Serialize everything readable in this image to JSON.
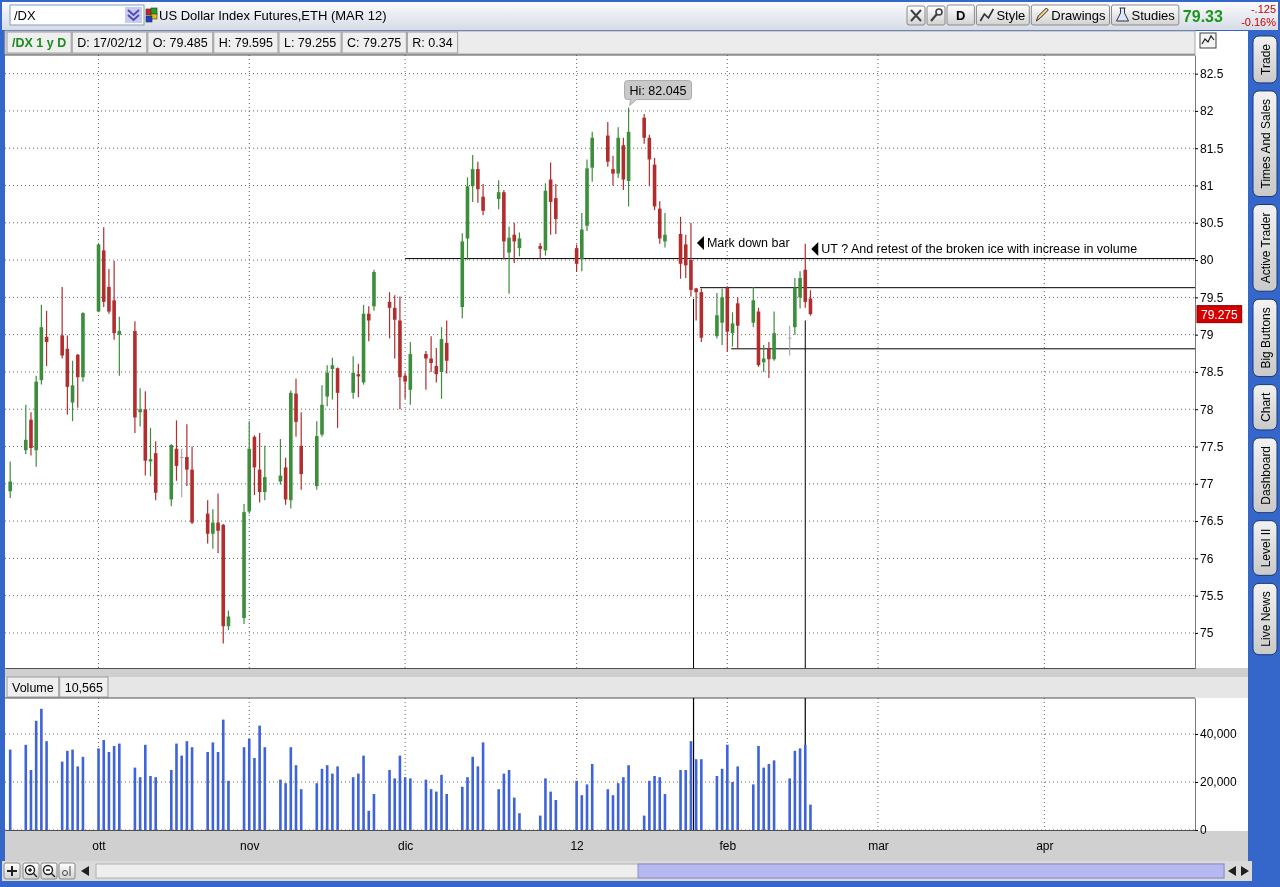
{
  "chart_data": [
    {
      "type": "candlestick",
      "title": "US Dollar Index Futures,ETH (MAR 12)",
      "subtitle": "/DX 1 y D",
      "x": [
        "2011-09-16",
        "2011-09-19",
        "2011-09-20",
        "2011-09-21",
        "2011-09-22",
        "2011-09-23",
        "2011-09-26",
        "2011-09-27",
        "2011-09-28",
        "2011-09-29",
        "2011-09-30",
        "2011-10-03",
        "2011-10-04",
        "2011-10-05",
        "2011-10-06",
        "2011-10-07",
        "2011-10-10",
        "2011-10-11",
        "2011-10-12",
        "2011-10-13",
        "2011-10-14",
        "2011-10-17",
        "2011-10-18",
        "2011-10-19",
        "2011-10-20",
        "2011-10-21",
        "2011-10-24",
        "2011-10-25",
        "2011-10-26",
        "2011-10-27",
        "2011-10-28",
        "2011-10-31",
        "2011-11-01",
        "2011-11-02",
        "2011-11-03",
        "2011-11-04",
        "2011-11-07",
        "2011-11-08",
        "2011-11-09",
        "2011-11-10",
        "2011-11-11",
        "2011-11-14",
        "2011-11-15",
        "2011-11-16",
        "2011-11-17",
        "2011-11-18",
        "2011-11-21",
        "2011-11-22",
        "2011-11-23",
        "2011-11-24",
        "2011-11-25",
        "2011-11-28",
        "2011-11-29",
        "2011-11-30",
        "2011-12-01",
        "2011-12-02",
        "2011-12-05",
        "2011-12-06",
        "2011-12-07",
        "2011-12-08",
        "2011-12-09",
        "2011-12-12",
        "2011-12-13",
        "2011-12-14",
        "2011-12-15",
        "2011-12-16",
        "2011-12-19",
        "2011-12-20",
        "2011-12-21",
        "2011-12-22",
        "2011-12-23",
        "2011-12-27",
        "2011-12-28",
        "2011-12-29",
        "2011-12-30",
        "2012-01-03",
        "2012-01-04",
        "2012-01-05",
        "2012-01-06",
        "2012-01-09",
        "2012-01-10",
        "2012-01-11",
        "2012-01-12",
        "2012-01-13",
        "2012-01-16",
        "2012-01-17",
        "2012-01-18",
        "2012-01-19",
        "2012-01-20",
        "2012-01-23",
        "2012-01-24",
        "2012-01-25",
        "2012-01-26",
        "2012-01-27",
        "2012-01-30",
        "2012-01-31",
        "2012-02-01",
        "2012-02-02",
        "2012-02-03",
        "2012-02-06",
        "2012-02-07",
        "2012-02-08",
        "2012-02-09",
        "2012-02-10",
        "2012-02-13",
        "2012-02-14",
        "2012-02-15",
        "2012-02-16",
        "2012-02-17"
      ],
      "ohlc": [
        [
          76.9,
          77.3,
          76.81,
          77.03
        ],
        [
          77.45,
          78.06,
          77.4,
          77.59
        ],
        [
          77.86,
          77.96,
          77.38,
          77.48
        ],
        [
          77.45,
          78.45,
          77.23,
          78.37
        ],
        [
          78.39,
          79.4,
          78.33,
          79.1
        ],
        [
          78.97,
          79.32,
          78.58,
          78.9
        ],
        [
          78.99,
          79.64,
          78.68,
          78.72
        ],
        [
          78.81,
          78.99,
          77.93,
          78.3
        ],
        [
          78.09,
          78.65,
          77.84,
          78.32
        ],
        [
          78.73,
          78.74,
          78.02,
          78.43
        ],
        [
          78.43,
          79.3,
          78.37,
          79.29
        ],
        [
          79.31,
          80.22,
          79.3,
          80.21
        ],
        [
          80.13,
          80.44,
          79.37,
          79.44
        ],
        [
          79.64,
          79.88,
          79.28,
          79.31
        ],
        [
          79.46,
          79.99,
          78.93,
          79.02
        ],
        [
          79.0,
          79.24,
          78.45,
          79.05
        ],
        [
          79.05,
          79.18,
          77.68,
          77.89
        ],
        [
          77.96,
          78.28,
          77.77,
          78.0
        ],
        [
          78.0,
          78.24,
          77.11,
          77.31
        ],
        [
          77.3,
          77.75,
          77.1,
          77.33
        ],
        [
          77.41,
          77.57,
          76.78,
          76.88
        ],
        [
          76.79,
          77.53,
          76.7,
          77.52
        ],
        [
          77.47,
          77.85,
          77.04,
          77.24
        ],
        [
          77.36,
          77.47,
          76.82,
          77.36
        ],
        [
          77.36,
          77.8,
          76.97,
          77.19
        ],
        [
          77.19,
          77.5,
          76.46,
          76.48
        ],
        [
          76.6,
          76.78,
          76.2,
          76.33
        ],
        [
          76.33,
          76.66,
          76.13,
          76.48
        ],
        [
          76.48,
          76.87,
          76.07,
          76.37
        ],
        [
          76.45,
          76.46,
          74.86,
          75.09
        ],
        [
          75.09,
          75.3,
          75.04,
          75.22
        ],
        [
          75.2,
          76.73,
          75.12,
          76.62
        ],
        [
          76.63,
          77.84,
          76.6,
          77.47
        ],
        [
          77.63,
          77.65,
          76.85,
          77.22
        ],
        [
          77.19,
          77.68,
          76.75,
          76.89
        ],
        [
          76.89,
          77.51,
          76.78,
          77.09
        ],
        [
          77.03,
          77.6,
          76.99,
          77.11
        ],
        [
          77.22,
          77.35,
          76.72,
          76.79
        ],
        [
          76.78,
          78.25,
          76.67,
          78.22
        ],
        [
          78.21,
          78.41,
          77.63,
          77.83
        ],
        [
          77.51,
          77.96,
          76.92,
          77.13
        ],
        [
          76.97,
          77.84,
          76.92,
          77.64
        ],
        [
          77.66,
          78.32,
          77.63,
          78.06
        ],
        [
          78.17,
          78.59,
          78.04,
          78.49
        ],
        [
          78.54,
          78.69,
          78.13,
          78.59
        ],
        [
          78.55,
          78.56,
          77.75,
          78.22
        ],
        [
          78.22,
          78.71,
          78.14,
          78.49
        ],
        [
          78.47,
          78.61,
          78.16,
          78.44
        ],
        [
          78.36,
          79.4,
          78.33,
          79.28
        ],
        [
          79.28,
          79.38,
          78.91,
          79.19
        ],
        [
          79.38,
          79.87,
          79.32,
          79.84
        ],
        [
          79.44,
          79.57,
          78.95,
          79.36
        ],
        [
          79.36,
          79.53,
          78.68,
          79.2
        ],
        [
          79.19,
          79.51,
          78.0,
          78.43
        ],
        [
          78.45,
          78.49,
          78.14,
          78.37
        ],
        [
          78.26,
          78.9,
          78.06,
          78.74
        ],
        [
          78.74,
          78.78,
          78.26,
          78.68
        ],
        [
          78.68,
          78.98,
          78.5,
          78.62
        ],
        [
          78.58,
          78.82,
          78.36,
          78.47
        ],
        [
          78.5,
          79.1,
          78.14,
          78.94
        ],
        [
          78.89,
          79.19,
          78.48,
          78.65
        ],
        [
          79.37,
          80.36,
          79.22,
          80.25
        ],
        [
          80.29,
          81.11,
          80.0,
          80.99
        ],
        [
          80.99,
          81.41,
          80.78,
          81.22
        ],
        [
          81.22,
          81.32,
          80.77,
          80.95
        ],
        [
          80.85,
          81.02,
          80.6,
          80.66
        ],
        [
          80.82,
          81.07,
          80.68,
          80.91
        ],
        [
          80.91,
          80.94,
          80.01,
          80.25
        ],
        [
          80.1,
          80.45,
          79.55,
          80.3
        ],
        [
          80.34,
          80.5,
          79.96,
          80.25
        ],
        [
          80.16,
          80.37,
          80.05,
          80.29
        ],
        [
          80.19,
          80.23,
          80.01,
          80.15
        ],
        [
          80.13,
          81.03,
          80.06,
          80.93
        ],
        [
          81.08,
          81.31,
          80.34,
          80.78
        ],
        [
          80.83,
          81.02,
          80.35,
          80.55
        ],
        [
          80.16,
          80.21,
          79.84,
          79.95
        ],
        [
          80.01,
          80.63,
          79.85,
          80.41
        ],
        [
          80.46,
          81.35,
          80.39,
          81.23
        ],
        [
          81.24,
          81.72,
          81.05,
          81.64
        ],
        [
          81.67,
          81.85,
          81.25,
          81.32
        ],
        [
          81.22,
          81.4,
          81.0,
          81.16
        ],
        [
          81.16,
          81.78,
          81.1,
          81.64
        ],
        [
          81.54,
          81.64,
          80.94,
          81.08
        ],
        [
          81.06,
          82.045,
          80.72,
          81.72
        ],
        [
          81.91,
          81.96,
          81.56,
          81.64
        ],
        [
          81.64,
          81.68,
          80.99,
          81.35
        ],
        [
          81.28,
          81.37,
          80.67,
          80.72
        ],
        [
          80.69,
          80.79,
          80.22,
          80.29
        ],
        [
          80.25,
          80.63,
          80.17,
          80.34
        ],
        [
          80.35,
          80.58,
          79.75,
          79.95
        ],
        [
          80.21,
          80.34,
          79.76,
          79.93
        ],
        [
          80.0,
          80.5,
          79.51,
          79.6
        ],
        [
          79.62,
          79.63,
          79.19,
          79.57
        ],
        [
          79.57,
          79.62,
          78.9,
          78.96
        ],
        [
          78.98,
          79.56,
          78.95,
          79.26
        ],
        [
          79.16,
          79.62,
          78.86,
          79.5
        ],
        [
          79.63,
          79.65,
          78.77,
          79.04
        ],
        [
          79.02,
          79.3,
          78.84,
          79.15
        ],
        [
          79.42,
          79.5,
          78.81,
          79.12
        ],
        [
          79.16,
          79.64,
          79.1,
          79.46
        ],
        [
          79.31,
          79.36,
          78.57,
          78.59
        ],
        [
          78.63,
          78.86,
          78.5,
          78.68
        ],
        [
          78.81,
          78.9,
          78.42,
          78.67
        ],
        [
          78.67,
          79.31,
          78.65,
          79.02
        ],
        [
          78.96,
          79.12,
          78.72,
          78.96
        ],
        [
          79.1,
          79.76,
          79.0,
          79.63
        ],
        [
          79.5,
          79.85,
          79.35,
          79.76
        ],
        [
          79.87,
          80.22,
          79.36,
          79.44
        ],
        [
          79.485,
          79.595,
          79.255,
          79.275
        ]
      ],
      "colors": [
        "#3c8d3c",
        "#3c8d3c",
        "#b22d2d",
        "#3c8d3c",
        "#3c8d3c",
        "#b22d2d",
        "#b22d2d",
        "#b22d2d",
        "#3c8d3c",
        "#b22d2d",
        "#3c8d3c",
        "#3c8d3c",
        "#b22d2d",
        "#b22d2d",
        "#b22d2d",
        "#3c8d3c",
        "#b22d2d",
        "#3c8d3c",
        "#b22d2d",
        "#3c8d3c",
        "#b22d2d",
        "#3c8d3c",
        "#b22d2d",
        "#a9a9a9",
        "#b22d2d",
        "#b22d2d",
        "#b22d2d",
        "#3c8d3c",
        "#b22d2d",
        "#b22d2d",
        "#3c8d3c",
        "#3c8d3c",
        "#3c8d3c",
        "#b22d2d",
        "#b22d2d",
        "#3c8d3c",
        "#3c8d3c",
        "#b22d2d",
        "#3c8d3c",
        "#b22d2d",
        "#b22d2d",
        "#3c8d3c",
        "#3c8d3c",
        "#3c8d3c",
        "#3c8d3c",
        "#b22d2d",
        "#3c8d3c",
        "#b22d2d",
        "#3c8d3c",
        "#b22d2d",
        "#3c8d3c",
        "#b22d2d",
        "#b22d2d",
        "#b22d2d",
        "#b22d2d",
        "#3c8d3c",
        "#b22d2d",
        "#b22d2d",
        "#b22d2d",
        "#3c8d3c",
        "#b22d2d",
        "#3c8d3c",
        "#3c8d3c",
        "#3c8d3c",
        "#b22d2d",
        "#b22d2d",
        "#3c8d3c",
        "#b22d2d",
        "#3c8d3c",
        "#b22d2d",
        "#3c8d3c",
        "#b22d2d",
        "#3c8d3c",
        "#b22d2d",
        "#b22d2d",
        "#b22d2d",
        "#3c8d3c",
        "#3c8d3c",
        "#3c8d3c",
        "#b22d2d",
        "#b22d2d",
        "#3c8d3c",
        "#b22d2d",
        "#3c8d3c",
        "#b22d2d",
        "#b22d2d",
        "#b22d2d",
        "#b22d2d",
        "#3c8d3c",
        "#b22d2d",
        "#b22d2d",
        "#b22d2d",
        "#b22d2d",
        "#b22d2d",
        "#3c8d3c",
        "#3c8d3c",
        "#b22d2d",
        "#3c8d3c",
        "#b22d2d",
        "#3c8d3c",
        "#b22d2d",
        "#3c8d3c",
        "#b22d2d",
        "#3c8d3c",
        "#a9a9a9",
        "#3c8d3c",
        "#3c8d3c",
        "#b22d2d",
        "#b22d2d"
      ],
      "series": [
        {
          "type": "line",
          "x": [
            "2011-12-01",
            "2012-05-01"
          ],
          "values": [
            80.02,
            80.02
          ],
          "color": "#000000"
        },
        {
          "type": "line",
          "x": [
            "2012-01-26T18:00",
            "2012-05-01"
          ],
          "values": [
            79.63,
            79.63
          ],
          "color": "#000000"
        },
        {
          "type": "line",
          "x": [
            "2012-02-01T18:00",
            "2012-05-01"
          ],
          "values": [
            78.81,
            78.81
          ],
          "color": "#000000"
        },
        {
          "type": "line",
          "x": [
            "2012-01-25T12:00",
            "2012-01-25T12:00"
          ],
          "values": [
            79.48,
            74.53
          ],
          "color": "#000000"
        },
        {
          "type": "line",
          "x": [
            "2012-02-16",
            "2012-02-16"
          ],
          "values": [
            79.19,
            74.53
          ],
          "color": "#000000"
        }
      ],
      "xlim": [
        "2011-09-15",
        "2012-05-01"
      ],
      "ylim": [
        74.53,
        82.75
      ],
      "xticks": [
        {
          "value": "2011-10-03",
          "label": null
        },
        {
          "value": "2011-11-01",
          "label": null
        },
        {
          "value": "2011-12-01",
          "label": null
        },
        {
          "value": "2012-01-03",
          "label": null
        },
        {
          "value": "2012-02-01",
          "label": null
        },
        {
          "value": "2012-03-01",
          "label": null
        },
        {
          "value": "2012-04-02",
          "label": null
        }
      ],
      "yticks": [
        75,
        75.5,
        76,
        76.5,
        77,
        77.5,
        78,
        78.5,
        79,
        79.5,
        80,
        80.5,
        81,
        81.5,
        82,
        82.5
      ],
      "grid": true,
      "tick_labels": "y",
      "annotations": [
        "D: 17/02/12",
        "O: 79.485",
        "H: 79.595",
        "L: 79.255",
        "C: 79.275",
        "R: 0.34",
        "79.275",
        {
          "text": "Hi: 82.045",
          "x": "2012-01-13",
          "y": 82.045
        },
        {
          "text": "Mark down bar",
          "x": "2012-01-25",
          "y": 80.23
        },
        {
          "text": "UT ? And retest of the broken ice with increase in volume",
          "x": "2012-02-16",
          "y": 80.15
        }
      ]
    },
    {
      "type": "bar",
      "title": "Volume",
      "subtitle": "10,565",
      "x": [
        "2011-09-16",
        "2011-09-19",
        "2011-09-20",
        "2011-09-21",
        "2011-09-22",
        "2011-09-23",
        "2011-09-26",
        "2011-09-27",
        "2011-09-28",
        "2011-09-29",
        "2011-09-30",
        "2011-10-03",
        "2011-10-04",
        "2011-10-05",
        "2011-10-06",
        "2011-10-07",
        "2011-10-10",
        "2011-10-11",
        "2011-10-12",
        "2011-10-13",
        "2011-10-14",
        "2011-10-17",
        "2011-10-18",
        "2011-10-19",
        "2011-10-20",
        "2011-10-21",
        "2011-10-24",
        "2011-10-25",
        "2011-10-26",
        "2011-10-27",
        "2011-10-28",
        "2011-10-31",
        "2011-11-01",
        "2011-11-02",
        "2011-11-03",
        "2011-11-04",
        "2011-11-07",
        "2011-11-08",
        "2011-11-09",
        "2011-11-10",
        "2011-11-11",
        "2011-11-14",
        "2011-11-15",
        "2011-11-16",
        "2011-11-17",
        "2011-11-18",
        "2011-11-21",
        "2011-11-22",
        "2011-11-23",
        "2011-11-24",
        "2011-11-25",
        "2011-11-28",
        "2011-11-29",
        "2011-11-30",
        "2011-12-01",
        "2011-12-02",
        "2011-12-05",
        "2011-12-06",
        "2011-12-07",
        "2011-12-08",
        "2011-12-09",
        "2011-12-12",
        "2011-12-13",
        "2011-12-14",
        "2011-12-15",
        "2011-12-16",
        "2011-12-19",
        "2011-12-20",
        "2011-12-21",
        "2011-12-22",
        "2011-12-23",
        "2011-12-27",
        "2011-12-28",
        "2011-12-29",
        "2011-12-30",
        "2012-01-03",
        "2012-01-04",
        "2012-01-05",
        "2012-01-06",
        "2012-01-09",
        "2012-01-10",
        "2012-01-11",
        "2012-01-12",
        "2012-01-13",
        "2012-01-16",
        "2012-01-17",
        "2012-01-18",
        "2012-01-19",
        "2012-01-20",
        "2012-01-23",
        "2012-01-24",
        "2012-01-25",
        "2012-01-26",
        "2012-01-27",
        "2012-01-30",
        "2012-01-31",
        "2012-02-01",
        "2012-02-02",
        "2012-02-03",
        "2012-02-06",
        "2012-02-07",
        "2012-02-08",
        "2012-02-09",
        "2012-02-10",
        "2012-02-13",
        "2012-02-14",
        "2012-02-15",
        "2012-02-16",
        "2012-02-17"
      ],
      "values": [
        33500,
        35500,
        25000,
        45500,
        50500,
        37000,
        28500,
        33000,
        33500,
        26500,
        30500,
        34000,
        37500,
        32500,
        35000,
        36000,
        26000,
        22000,
        35500,
        22500,
        22000,
        25000,
        36000,
        31000,
        37000,
        34500,
        32500,
        36500,
        32500,
        46000,
        20500,
        34500,
        38000,
        30000,
        43500,
        34500,
        21000,
        19500,
        34500,
        27000,
        17000,
        19500,
        25500,
        27000,
        23500,
        26500,
        22000,
        23500,
        31000,
        8000,
        15000,
        25000,
        21500,
        31000,
        22000,
        21500,
        21000,
        17000,
        16000,
        23000,
        15000,
        18000,
        22000,
        30500,
        26500,
        36500,
        17000,
        23500,
        25000,
        13500,
        7000,
        6000,
        21500,
        16000,
        12500,
        20500,
        14500,
        19000,
        27500,
        17000,
        14500,
        19500,
        22000,
        27000,
        6000,
        20500,
        22500,
        22000,
        15000,
        25000,
        25000,
        37000,
        29500,
        29500,
        22500,
        25500,
        35500,
        20000,
        26500,
        19000,
        35000,
        26000,
        27500,
        29000,
        21500,
        33000,
        34000,
        35500,
        10565
      ],
      "color": "#3f63d8",
      "xlim": [
        "2011-09-15",
        "2012-05-01"
      ],
      "ylim": [
        0,
        55000
      ],
      "xticks": [
        {
          "value": "2011-10-03",
          "label": "ott"
        },
        {
          "value": "2011-11-01",
          "label": "nov"
        },
        {
          "value": "2011-12-01",
          "label": "dic"
        },
        {
          "value": "2012-01-03",
          "label": "12"
        },
        {
          "value": "2012-02-01",
          "label": "feb"
        },
        {
          "value": "2012-03-01",
          "label": "mar"
        },
        {
          "value": "2012-04-02",
          "label": "apr"
        }
      ],
      "yticks": [
        0,
        {
          "value": 20000,
          "label": "20,000"
        },
        {
          "value": 40000,
          "label": "40,000"
        }
      ],
      "grid": true,
      "ref_lines": [
        {
          "axis": "x",
          "value": "2012-01-25T12:00",
          "color": "#000000"
        },
        {
          "axis": "x",
          "value": "2012-02-16",
          "color": "#000000"
        }
      ]
    },
    {
      "type": "other",
      "annotations": [
        "/DX",
        "D",
        "Style",
        "Drawings",
        "Studies",
        "79.33",
        "-.125",
        "-0.16%",
        "Trade",
        "Times And Sales",
        "Active Trader",
        "Big Buttons",
        "Chart",
        "Dashboard",
        "Level II",
        "Live News"
      ]
    }
  ]
}
